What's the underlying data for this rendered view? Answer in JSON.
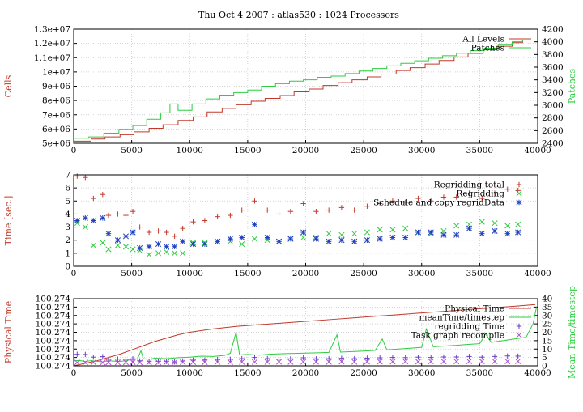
{
  "title": "Thu Oct 4 2007 : atlas530 : 1024 Processors",
  "colors": {
    "red": "#c0392b",
    "green": "#2ecc40",
    "blue": "#1f3fbf",
    "magenta": "#b04fd0",
    "purple": "#6a3fc9"
  },
  "chart_data": [
    {
      "type": "line",
      "ylabel": "Cells",
      "y2label": "Patches",
      "xlim": [
        0,
        40000
      ],
      "ylim": [
        5000000,
        13000000
      ],
      "y2lim": [
        2400,
        4200
      ],
      "xticks": [
        0,
        5000,
        10000,
        15000,
        20000,
        25000,
        30000,
        35000,
        40000
      ],
      "yticks": [
        "5e+06",
        "6e+06",
        "7e+06",
        "8e+06",
        "9e+06",
        "1e+07",
        "1.1e+07",
        "1.2e+07",
        "1.3e+07"
      ],
      "y2ticks": [
        2400,
        2600,
        2800,
        3000,
        3200,
        3400,
        3600,
        3800,
        4000,
        4200
      ],
      "legend_position": "top-right",
      "series": [
        {
          "name": "All Levels",
          "axis": "left",
          "color": "#c0392b",
          "step": true,
          "x": [
            0,
            1500,
            2700,
            4000,
            5200,
            6500,
            7700,
            9000,
            10300,
            11500,
            12800,
            14000,
            15300,
            16500,
            17800,
            19000,
            20300,
            21500,
            22800,
            24000,
            25300,
            26500,
            27800,
            29000,
            30300,
            31500,
            32800,
            34000,
            35300,
            36500,
            37800,
            38700
          ],
          "y": [
            5150000,
            5300000,
            5450000,
            5600000,
            5800000,
            6050000,
            6300000,
            6600000,
            6850000,
            7200000,
            7450000,
            7700000,
            7950000,
            8150000,
            8350000,
            8600000,
            8800000,
            9050000,
            9250000,
            9450000,
            9650000,
            9850000,
            10100000,
            10300000,
            10550000,
            10800000,
            11050000,
            11300000,
            11550000,
            11800000,
            12050000,
            12200000
          ]
        },
        {
          "name": "Patches",
          "axis": "right",
          "color": "#2ecc40",
          "step": true,
          "x": [
            0,
            1300,
            2600,
            3900,
            5100,
            6300,
            7500,
            8300,
            9000,
            10200,
            11400,
            12600,
            13800,
            15000,
            16200,
            17400,
            18600,
            19800,
            21000,
            22200,
            23400,
            24600,
            25800,
            27000,
            28200,
            29400,
            30600,
            31800,
            33000,
            34200,
            35400,
            36600,
            37800,
            38700
          ],
          "y": [
            2480,
            2500,
            2560,
            2620,
            2680,
            2780,
            2880,
            3020,
            2920,
            3020,
            3100,
            3160,
            3200,
            3240,
            3300,
            3340,
            3380,
            3400,
            3440,
            3460,
            3500,
            3540,
            3580,
            3620,
            3660,
            3700,
            3740,
            3780,
            3820,
            3860,
            3900,
            3960,
            4000,
            4020
          ]
        }
      ]
    },
    {
      "type": "scatter",
      "ylabel": "Time [sec.]",
      "xlim": [
        0,
        40000
      ],
      "ylim": [
        0,
        7
      ],
      "xticks": [
        0,
        5000,
        10000,
        15000,
        20000,
        25000,
        30000,
        35000,
        40000
      ],
      "yticks": [
        0,
        1,
        2,
        3,
        4,
        5,
        6,
        7
      ],
      "legend_position": "top-right",
      "series": [
        {
          "name": "Regridding total",
          "marker": "plus",
          "color": "#c0392b",
          "x": [
            300,
            1000,
            1700,
            2500,
            3000,
            3800,
            4500,
            5100,
            5700,
            6500,
            7300,
            8000,
            8700,
            9400,
            10300,
            11300,
            12400,
            13500,
            14500,
            15600,
            16700,
            17700,
            18700,
            19800,
            20900,
            22000,
            23100,
            24200,
            25300,
            26400,
            27500,
            28600,
            29700,
            30800,
            31900,
            33000,
            34100,
            35200,
            36300,
            37400,
            38300
          ],
          "y": [
            6.9,
            6.8,
            5.2,
            5.5,
            3.9,
            4.0,
            3.9,
            4.2,
            3.0,
            2.6,
            2.7,
            2.6,
            2.3,
            2.9,
            3.4,
            3.5,
            3.8,
            3.9,
            4.3,
            5.0,
            4.3,
            4.0,
            4.2,
            4.8,
            4.2,
            4.3,
            4.5,
            4.3,
            4.6,
            4.8,
            5.0,
            4.9,
            5.2,
            5.0,
            5.3,
            5.3,
            5.6,
            5.2,
            5.6,
            5.9,
            5.8
          ]
        },
        {
          "name": "Regridding",
          "marker": "x",
          "color": "#2ecc40",
          "x": [
            300,
            1000,
            1700,
            2500,
            3000,
            3800,
            4500,
            5100,
            5700,
            6500,
            7300,
            8000,
            8700,
            9400,
            10300,
            11300,
            12400,
            13500,
            14500,
            15600,
            16700,
            17700,
            18700,
            19800,
            20900,
            22000,
            23100,
            24200,
            25300,
            26400,
            27500,
            28600,
            29700,
            30800,
            31900,
            33000,
            34100,
            35200,
            36300,
            37400,
            38300
          ],
          "y": [
            3.3,
            3.0,
            1.6,
            1.8,
            1.3,
            1.6,
            1.5,
            1.3,
            1.2,
            0.9,
            1.0,
            1.1,
            1.0,
            1.0,
            1.8,
            1.8,
            1.9,
            1.9,
            1.7,
            2.1,
            2.0,
            1.9,
            2.1,
            2.2,
            2.2,
            2.5,
            2.4,
            2.5,
            2.6,
            2.8,
            2.8,
            2.9,
            2.6,
            2.5,
            2.7,
            3.1,
            3.2,
            3.4,
            3.3,
            3.1,
            3.2
          ]
        },
        {
          "name": "Schedule and copy regridData",
          "marker": "star",
          "color": "#1f3fbf",
          "x": [
            300,
            1000,
            1700,
            2500,
            3000,
            3800,
            4500,
            5100,
            5700,
            6500,
            7300,
            8000,
            8700,
            9400,
            10300,
            11300,
            12400,
            13500,
            14500,
            15600,
            16700,
            17700,
            18700,
            19800,
            20900,
            22000,
            23100,
            24200,
            25300,
            26400,
            27500,
            28600,
            29700,
            30800,
            31900,
            33000,
            34100,
            35200,
            36300,
            37400,
            38300
          ],
          "y": [
            3.5,
            3.7,
            3.5,
            3.7,
            2.5,
            2.0,
            2.3,
            2.6,
            1.4,
            1.5,
            1.7,
            1.5,
            1.5,
            1.9,
            1.7,
            1.7,
            1.9,
            2.1,
            2.2,
            3.2,
            2.2,
            1.9,
            2.1,
            2.6,
            2.1,
            1.9,
            2.0,
            1.9,
            2.0,
            2.1,
            2.2,
            2.2,
            2.6,
            2.6,
            2.4,
            2.4,
            2.9,
            2.5,
            2.7,
            2.5,
            2.6
          ]
        }
      ]
    },
    {
      "type": "line",
      "ylabel": "Physical Time",
      "y2label": "Mean Time/timestep",
      "xlim": [
        0,
        40000
      ],
      "ylim": [
        0,
        8
      ],
      "y2lim": [
        0,
        40
      ],
      "xticks": [
        0,
        5000,
        10000,
        15000,
        20000,
        25000,
        30000,
        35000,
        40000
      ],
      "yticks": [
        "100.274",
        "100.274",
        "100.274",
        "100.274",
        "100.274",
        "100.274",
        "100.274",
        "100.274",
        "100.274"
      ],
      "y2ticks": [
        0,
        5,
        10,
        15,
        20,
        25,
        30,
        35,
        40
      ],
      "legend_position": "top-right",
      "series": [
        {
          "name": "Physical Time",
          "axis": "left",
          "color": "#c0392b",
          "x": [
            0,
            1000,
            2000,
            3000,
            4000,
            5000,
            6000,
            7000,
            8000,
            9000,
            10000,
            12000,
            14000,
            16000,
            18000,
            20000,
            22000,
            24000,
            26000,
            28000,
            30000,
            32000,
            34000,
            36000,
            38000,
            39800
          ],
          "y": [
            0.0,
            0.3,
            0.6,
            1.0,
            1.4,
            1.9,
            2.4,
            2.9,
            3.3,
            3.7,
            4.0,
            4.4,
            4.7,
            4.9,
            5.1,
            5.3,
            5.5,
            5.7,
            5.9,
            6.1,
            6.3,
            6.5,
            6.7,
            6.9,
            7.1,
            7.3
          ]
        },
        {
          "name": "meanTime/timestep",
          "axis": "right",
          "color": "#2ecc40",
          "x": [
            0,
            500,
            1000,
            1500,
            2000,
            2500,
            3000,
            3500,
            4000,
            4500,
            5000,
            5500,
            5800,
            6000,
            6500,
            7000,
            8000,
            9000,
            10000,
            11000,
            12000,
            13000,
            13500,
            14000,
            14300,
            15000,
            16000,
            17000,
            18000,
            19000,
            20000,
            21000,
            22000,
            22700,
            23000,
            24000,
            25000,
            26000,
            26600,
            27000,
            28000,
            29000,
            30000,
            30400,
            31000,
            32000,
            33000,
            34000,
            35000,
            35500,
            36000,
            37000,
            38000,
            39000,
            39600,
            39900
          ],
          "y": [
            3.0,
            3.2,
            2.6,
            3.1,
            2.7,
            2.4,
            3.0,
            2.8,
            2.6,
            3.1,
            3.8,
            4.2,
            9.0,
            4.3,
            4.0,
            4.6,
            4.3,
            4.9,
            5.2,
            5.8,
            5.6,
            6.2,
            7.5,
            20.0,
            6.5,
            6.8,
            6.4,
            7.0,
            7.2,
            7.4,
            7.6,
            7.8,
            8.0,
            18.5,
            8.2,
            8.5,
            8.8,
            9.2,
            16.0,
            9.5,
            10.0,
            10.5,
            11.0,
            22.0,
            11.4,
            11.8,
            12.2,
            12.8,
            13.2,
            19.0,
            14.0,
            15.0,
            16.0,
            17.0,
            25.0,
            35.0
          ]
        },
        {
          "name": "regridding Time",
          "axis": "right",
          "marker": "plus",
          "color": "#6a3fc9",
          "x": [
            300,
            1000,
            1700,
            2500,
            3000,
            3800,
            4500,
            5100,
            5700,
            6500,
            7300,
            8000,
            8700,
            9400,
            10300,
            11300,
            12400,
            13500,
            14500,
            15600,
            16700,
            17700,
            18700,
            19800,
            20900,
            22000,
            23100,
            24200,
            25300,
            26400,
            27500,
            28600,
            29700,
            30800,
            31900,
            33000,
            34100,
            35200,
            36300,
            37400,
            38300
          ],
          "y": [
            6.9,
            6.8,
            5.2,
            5.5,
            3.9,
            4.0,
            3.9,
            4.2,
            3.0,
            2.6,
            2.7,
            2.6,
            2.3,
            2.9,
            3.4,
            3.5,
            3.8,
            3.9,
            4.3,
            5.0,
            4.3,
            4.0,
            4.2,
            4.8,
            4.2,
            4.3,
            4.5,
            4.3,
            4.6,
            4.8,
            5.0,
            4.9,
            5.2,
            5.0,
            5.3,
            5.3,
            5.6,
            5.2,
            5.6,
            5.9,
            5.8
          ]
        },
        {
          "name": "Task graph recompile",
          "axis": "right",
          "marker": "x",
          "color": "#b04fd0",
          "x": [
            300,
            1000,
            1700,
            2500,
            3000,
            3800,
            4500,
            5100,
            5700,
            6500,
            7300,
            8000,
            8700,
            9400,
            10300,
            11300,
            12400,
            13500,
            14500,
            15600,
            16700,
            17700,
            18700,
            19800,
            20900,
            22000,
            23100,
            24200,
            25300,
            26400,
            27500,
            28600,
            29700,
            30800,
            31900,
            33000,
            34100,
            35200,
            36300,
            37400,
            38300
          ],
          "y": [
            2.0,
            2.0,
            2.1,
            2.0,
            2.1,
            2.0,
            2.1,
            2.2,
            2.0,
            2.1,
            2.1,
            2.2,
            2.1,
            2.2,
            2.2,
            2.2,
            2.3,
            2.2,
            2.3,
            2.3,
            2.3,
            2.4,
            2.3,
            2.4,
            2.4,
            2.4,
            2.5,
            2.4,
            2.5,
            2.5,
            2.5,
            2.6,
            2.5,
            2.6,
            2.6,
            2.6,
            2.7,
            2.6,
            2.7,
            2.7,
            2.7
          ]
        }
      ]
    }
  ]
}
